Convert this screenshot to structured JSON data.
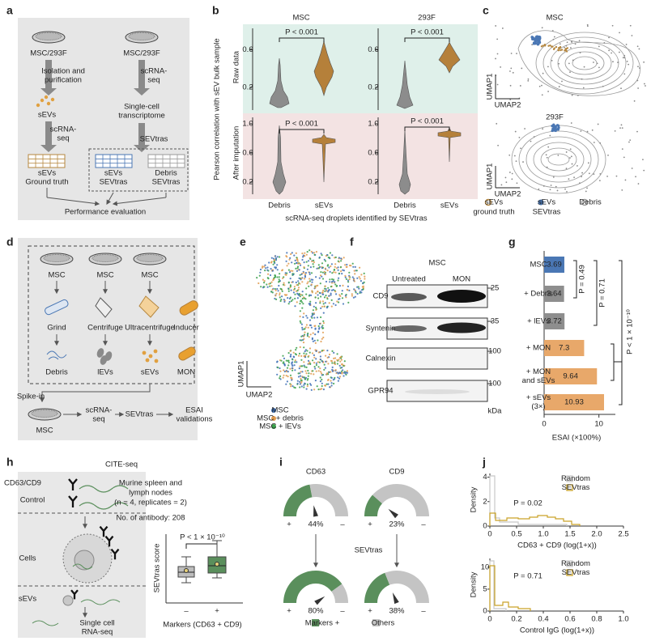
{
  "figure": {
    "a": {
      "label": "a",
      "sources": [
        "MSC/293F",
        "MSC/293F"
      ],
      "left_step1": [
        "Isolation and",
        "purification"
      ],
      "right_step1": [
        "scRNA-",
        "seq"
      ],
      "left_product": "sEVs",
      "right_product": [
        "Single-cell",
        "transcriptome"
      ],
      "left_step2": [
        "scRNA-",
        "seq"
      ],
      "right_step2": "SEVtras",
      "outputs": [
        [
          "sEVs",
          "Ground truth"
        ],
        [
          "sEVs",
          "SEVtras"
        ],
        [
          "Debris",
          "SEVtras"
        ]
      ],
      "footer": "Performance evaluation"
    },
    "b": {
      "label": "b",
      "columns": [
        "MSC",
        "293F"
      ],
      "y_label": "Pearson correlation with sEV bulk sample",
      "rows": [
        {
          "name": "Raw data",
          "ylim": [
            0,
            0.83
          ],
          "yticks": [
            0.6,
            0.2
          ]
        },
        {
          "name": "After imputation",
          "ylim": [
            0.1,
            1.1
          ],
          "yticks": [
            {
              "value": 1,
              "label": "1.0"
            },
            0.6,
            0.2
          ]
        }
      ],
      "p_value": "P < 0.001",
      "groups": [
        "Debris",
        "sEVs"
      ],
      "x_label": "scRNA-seq droplets identified by SEVtras"
    },
    "c": {
      "label": "c",
      "plots": [
        "MSC",
        "293F"
      ],
      "axis_labels": [
        "UMAP1",
        "UMAP2"
      ],
      "legend": [
        [
          "sEVs",
          "ground truth"
        ],
        [
          "sEVs",
          "SEVtras"
        ],
        [
          "Debris"
        ]
      ]
    },
    "d": {
      "label": "d",
      "source": "MSC",
      "methods": [
        "Grind",
        "Centrifuge",
        "Ultracentrifuge",
        "Inducer"
      ],
      "products": [
        "Debris",
        "lEVs",
        "sEVs",
        "MON"
      ],
      "spike_in": "Spike-in",
      "pipeline": [
        [
          "scRNA-",
          "seq"
        ],
        [
          "SEVtras"
        ],
        [
          "ESAI",
          "validations"
        ]
      ]
    },
    "e": {
      "label": "e",
      "axis_labels": [
        "UMAP1",
        "UMAP2"
      ],
      "legend": [
        {
          "name": "MSC",
          "color": "#3d6fb6"
        },
        {
          "name": "MSC + debris",
          "color": "#e09a4c"
        },
        {
          "name": "MSC + lEVs",
          "color": "#3aa04a"
        }
      ]
    },
    "f": {
      "label": "f",
      "title": "MSC",
      "conditions": [
        "Untreated",
        "MON"
      ],
      "proteins": [
        "CD9",
        "Syntenin",
        "Calnexin",
        "GPR94"
      ],
      "markers": [
        25,
        35,
        100,
        100
      ],
      "unit": "kDa"
    },
    "g": {
      "label": "g",
      "categories": [
        "MSC",
        "+ Debris",
        "+ lEVs",
        "+ MON",
        [
          "+ MON",
          "and sEVs"
        ],
        [
          "+ sEVs",
          "(3×)"
        ]
      ],
      "values": [
        3.69,
        3.64,
        3.72,
        7.3,
        9.64,
        10.93
      ],
      "colors": [
        "#4a77b4",
        "#8e8e8e",
        "#8e8e8e",
        "#e8a86a",
        "#e8a86a",
        "#e8a86a"
      ],
      "xlim": [
        0,
        13
      ],
      "xticks": [
        0,
        10
      ],
      "x_label": "ESAI (×100%)",
      "comparisons": [
        "P = 0.49",
        "P = 0.71",
        "P < 1 × 10⁻¹⁰"
      ]
    },
    "h": {
      "label": "h",
      "title": "CITE-seq",
      "antibodies": [
        "CD63/CD9",
        "Control"
      ],
      "steps": [
        "Cells",
        "sEVs",
        [
          "Single cell",
          "RNA-seq"
        ]
      ],
      "sample": [
        "Murine spleen and",
        "lymph nodes",
        "(n = 4, replicates = 2)"
      ],
      "antibody_count": "No. of antibody: 208",
      "y_label": "SEVtras score",
      "p_value": "P < 1 × 10⁻¹⁰",
      "groups": [
        "–",
        "+"
      ],
      "x_label": "Markers (CD63 + CD9)"
    },
    "i": {
      "label": "i",
      "gauges": [
        {
          "name": "CD63",
          "before": 44,
          "before_label": "44%",
          "after": 80,
          "after_label": "80%"
        },
        {
          "name": "CD9",
          "before": 23,
          "before_label": "23%",
          "after": 38,
          "after_label": "38%"
        }
      ],
      "step": "SEVtras",
      "signs": [
        "+",
        "–"
      ],
      "legend": [
        {
          "name": "Markers +",
          "color": "#5a8f5c"
        },
        {
          "name": "Others",
          "color": "#c4c4c4"
        }
      ]
    },
    "j": {
      "label": "j",
      "y_label": "Density",
      "legend": [
        {
          "name": "Random",
          "color": "#c8c8c8"
        },
        {
          "name": "SEVtras",
          "color": "#c9a227"
        }
      ],
      "plots": [
        {
          "p_value": "P = 0.02",
          "x_label": "CD63 + CD9 (log(1+x))",
          "xlim": [
            0,
            2.5
          ],
          "xticks": [
            0,
            0.5,
            {
              "value": 1,
              "label": "1.0"
            },
            1.5,
            {
              "value": 2,
              "label": "2.0"
            },
            2.5
          ],
          "ylim": [
            0,
            4.3
          ],
          "yticks": [
            0,
            2,
            4
          ]
        },
        {
          "p_value": "P = 0.71",
          "x_label": "Control IgG (log(1+x))",
          "xlim": [
            0,
            1
          ],
          "xticks": [
            0,
            0.2,
            0.4,
            0.6,
            0.8,
            {
              "value": 1,
              "label": "1.0"
            }
          ],
          "ylim": [
            0,
            12
          ],
          "yticks": [
            0,
            5,
            10
          ]
        }
      ]
    }
  }
}
